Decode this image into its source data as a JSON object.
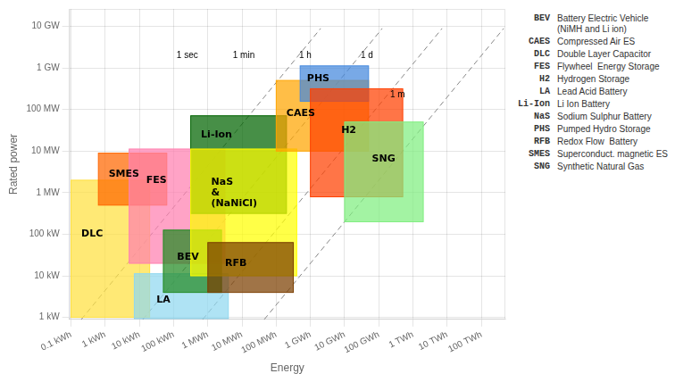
{
  "chart_data": {
    "type": "rectangles",
    "xlabel": "Energy",
    "ylabel": "Rated power",
    "xlim": [
      -1.05,
      11.7
    ],
    "ylim": [
      2.95,
      10.42
    ],
    "xticks": [
      {
        "value": -1,
        "label": "0.1 kWh"
      },
      {
        "value": 0,
        "label": "1 kWh"
      },
      {
        "value": 1,
        "label": "10 kWh"
      },
      {
        "value": 2,
        "label": "100 kWh"
      },
      {
        "value": 3,
        "label": "1 MWh"
      },
      {
        "value": 4,
        "label": "10 MWh"
      },
      {
        "value": 5,
        "label": "100 MWh"
      },
      {
        "value": 6,
        "label": "1 GWh"
      },
      {
        "value": 7,
        "label": "10 GWh"
      },
      {
        "value": 8,
        "label": "100 GWh"
      },
      {
        "value": 9,
        "label": "1 TWh"
      },
      {
        "value": 10,
        "label": "10 TWh"
      },
      {
        "value": 11,
        "label": "100 TWh"
      }
    ],
    "yticks": [
      {
        "value": 3,
        "label": "1 kW"
      },
      {
        "value": 4,
        "label": "10 kW"
      },
      {
        "value": 5,
        "label": "100 kW"
      },
      {
        "value": 6,
        "label": "1 MW"
      },
      {
        "value": 7,
        "label": "10 MW"
      },
      {
        "value": 8,
        "label": "100 MW"
      },
      {
        "value": 9,
        "label": "1 GW"
      },
      {
        "value": 10,
        "label": "10 GW"
      }
    ],
    "grid": true,
    "series": [
      {
        "name": "DLC",
        "color": "#FFE040",
        "x": [
          -1.0,
          1.3
        ],
        "y": [
          3.0,
          6.3
        ],
        "label_at": [
          -0.7,
          5.0
        ]
      },
      {
        "name": "SMES",
        "color": "#FF6600",
        "x": [
          -0.2,
          1.8
        ],
        "y": [
          5.7,
          6.95
        ],
        "label_at": [
          0.1,
          6.45
        ]
      },
      {
        "name": "FES",
        "color": "#FF80B0",
        "x": [
          0.7,
          3.5
        ],
        "y": [
          4.3,
          7.05
        ],
        "label_at": [
          1.2,
          6.3
        ]
      },
      {
        "name": "LA",
        "color": "#90D8F0",
        "x": [
          0.85,
          3.6
        ],
        "y": [
          2.97,
          4.05
        ],
        "label_at": [
          1.5,
          3.42
        ]
      },
      {
        "name": "BEV",
        "color": "#228B22",
        "x": [
          1.7,
          3.4
        ],
        "y": [
          3.6,
          5.1
        ],
        "label_at": [
          2.1,
          4.45
        ]
      },
      {
        "name": "Li-Ion",
        "color": "#006400",
        "x": [
          2.5,
          5.3
        ],
        "y": [
          5.5,
          7.85
        ],
        "label_at": [
          2.8,
          7.4
        ]
      },
      {
        "name": "NaS\n&\n(NaNiCl)",
        "color": "#FFFF00",
        "x": [
          2.5,
          5.6
        ],
        "y": [
          4.0,
          7.05
        ],
        "label_at": [
          3.1,
          6.0
        ]
      },
      {
        "name": "RFB",
        "color": "#7B3F00",
        "x": [
          3.0,
          5.5
        ],
        "y": [
          3.6,
          4.8
        ],
        "label_at": [
          3.5,
          4.3
        ]
      },
      {
        "name": "CAES",
        "color": "#FFA500",
        "x": [
          5.0,
          7.7
        ],
        "y": [
          7.0,
          8.7
        ],
        "label_at": [
          5.3,
          7.9
        ]
      },
      {
        "name": "PHS",
        "color": "#4488DD",
        "x": [
          5.7,
          7.7
        ],
        "y": [
          8.2,
          9.05
        ],
        "label_at": [
          5.9,
          8.75
        ]
      },
      {
        "name": "H2",
        "color": "#FF4000",
        "x": [
          6.0,
          8.7
        ],
        "y": [
          5.9,
          8.5
        ],
        "label_at": [
          6.9,
          7.5
        ]
      },
      {
        "name": "SNG",
        "color": "#80EE80",
        "x": [
          7.0,
          9.3
        ],
        "y": [
          5.3,
          7.7
        ],
        "label_at": [
          7.8,
          6.8
        ]
      }
    ],
    "lines": [
      {
        "x": [
          -0.7,
          6.3
        ],
        "y": [
          2.95,
          9.95
        ],
        "color": "#888888",
        "line_style": "dashed"
      },
      {
        "x": [
          1.1,
          8.1
        ],
        "y": [
          2.95,
          9.95
        ],
        "color": "#888888",
        "line_style": "dashed"
      },
      {
        "x": [
          2.85,
          9.85
        ],
        "y": [
          2.95,
          9.95
        ],
        "color": "#888888",
        "line_style": "dashed"
      },
      {
        "x": [
          4.65,
          11.65
        ],
        "y": [
          2.95,
          9.95
        ],
        "color": "#888888",
        "line_style": "dashed"
      }
    ],
    "annotations": [
      {
        "text": "1 sec",
        "x": 2.4,
        "y": 9.3
      },
      {
        "text": "1 min",
        "x": 4.05,
        "y": 9.3
      },
      {
        "text": "1 h",
        "x": 5.85,
        "y": 9.3
      },
      {
        "text": "1 d",
        "x": 7.65,
        "y": 9.3
      },
      {
        "text": "1 m",
        "x": 8.55,
        "y": 8.35
      }
    ],
    "notes": [
      {
        "abbr": "BEV",
        "text": "Battery Electric Vehicle\n(NiMH and Li ion)"
      },
      {
        "abbr": "CAES",
        "text": "Compressed Air ES"
      },
      {
        "abbr": "DLC",
        "text": "Double Layer Capacitor"
      },
      {
        "abbr": "FES",
        "text": "Flywheel  Energy Storage"
      },
      {
        "abbr": "H2",
        "text": "Hydrogen Storage"
      },
      {
        "abbr": "LA",
        "text": "Lead Acid Battery"
      },
      {
        "abbr": "Li-Ion",
        "text": "Li Ion Battery"
      },
      {
        "abbr": "NaS",
        "text": "Sodium Sulphur Battery"
      },
      {
        "abbr": "PHS",
        "text": "Pumped Hydro Storage"
      },
      {
        "abbr": "RFB",
        "text": "Redox Flow  Battery"
      },
      {
        "abbr": "SMES",
        "text": "Superconduct. magnetic ES"
      },
      {
        "abbr": "SNG",
        "text": "Synthetic Natural Gas"
      }
    ]
  }
}
